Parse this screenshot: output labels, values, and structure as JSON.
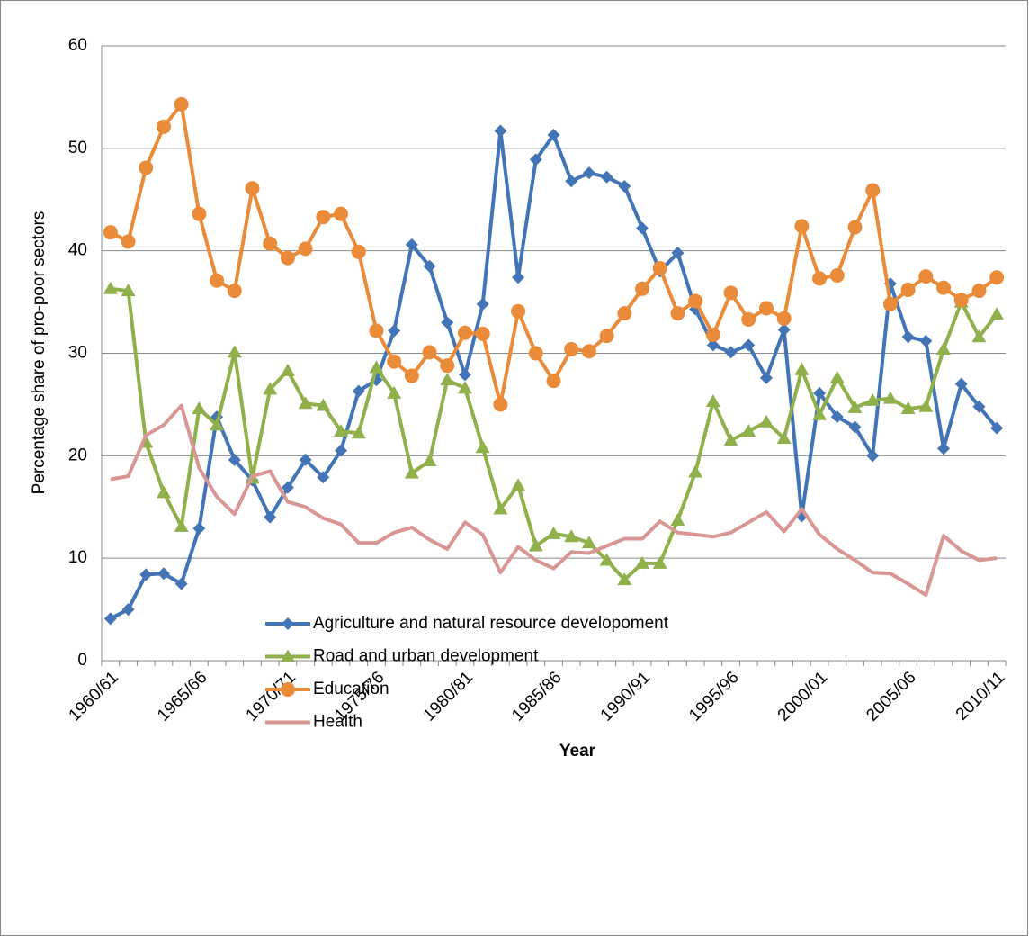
{
  "chart_data": {
    "type": "line",
    "x_label": "Year",
    "y_label": "Percentage share of pro-poor sectors",
    "categories": [
      "1960/61",
      null,
      null,
      null,
      null,
      "1965/66",
      null,
      null,
      null,
      null,
      "1970/71",
      null,
      null,
      null,
      null,
      "1975/76",
      null,
      null,
      null,
      null,
      "1980/81",
      null,
      null,
      null,
      null,
      "1985/86",
      null,
      null,
      null,
      null,
      "1990/91",
      null,
      null,
      null,
      null,
      "1995/96",
      null,
      null,
      null,
      null,
      "2000/01",
      null,
      null,
      null,
      null,
      "2005/06",
      null,
      null,
      null,
      null,
      "2010/11"
    ],
    "ylim": [
      0,
      60
    ],
    "yticks": [
      0,
      10,
      20,
      30,
      40,
      50,
      60
    ],
    "grid": true,
    "legend": "bottom",
    "series": [
      {
        "name": "Agriculture and natural resource developoment",
        "color": "#4274b6",
        "marker": "diamond",
        "values": [
          4.1,
          5.0,
          8.4,
          8.5,
          7.5,
          12.9,
          23.8,
          19.6,
          17.6,
          14.0,
          16.9,
          19.6,
          17.9,
          20.5,
          26.3,
          27.4,
          32.2,
          40.6,
          38.5,
          33.0,
          27.9,
          34.8,
          51.7,
          37.4,
          48.9,
          51.3,
          46.8,
          47.6,
          47.2,
          46.3,
          42.2,
          38.0,
          39.8,
          34.3,
          30.8,
          30.1,
          30.8,
          27.6,
          32.3,
          14.1,
          26.1,
          23.8,
          22.8,
          20.0,
          36.8,
          31.6,
          31.2,
          20.7,
          27.0,
          24.8,
          22.7
        ]
      },
      {
        "name": "Road and urban development",
        "color": "#8fb04a",
        "marker": "triangle",
        "values": [
          36.3,
          36.1,
          21.3,
          16.4,
          13.1,
          24.6,
          23.0,
          30.1,
          17.8,
          26.5,
          28.3,
          25.1,
          24.9,
          22.4,
          22.2,
          28.6,
          26.1,
          18.3,
          19.5,
          27.4,
          26.6,
          20.8,
          14.8,
          17.1,
          11.2,
          12.4,
          12.1,
          11.5,
          9.8,
          7.9,
          9.5,
          9.5,
          13.7,
          18.4,
          25.3,
          21.5,
          22.4,
          23.3,
          21.7,
          28.4,
          24.0,
          27.6,
          24.7,
          25.4,
          25.6,
          24.6,
          24.8,
          30.4,
          35.0,
          31.6,
          33.8
        ]
      },
      {
        "name": "Education",
        "color": "#ea8b3a",
        "marker": "circle",
        "values": [
          41.8,
          40.9,
          48.1,
          52.1,
          54.3,
          43.6,
          37.1,
          36.1,
          46.1,
          40.7,
          39.3,
          40.2,
          43.3,
          43.6,
          39.9,
          32.2,
          29.2,
          27.8,
          30.1,
          28.8,
          32.0,
          31.9,
          25.0,
          34.1,
          30.0,
          27.3,
          30.4,
          30.2,
          31.7,
          33.9,
          36.3,
          38.3,
          33.9,
          35.1,
          31.8,
          35.9,
          33.3,
          34.4,
          33.4,
          42.4,
          37.3,
          37.6,
          42.3,
          45.9,
          34.8,
          36.2,
          37.5,
          36.4,
          35.2,
          36.1,
          37.4
        ]
      },
      {
        "name": "Health",
        "color": "#d99694",
        "marker": "none",
        "values": [
          17.7,
          18.0,
          22.0,
          23.0,
          24.9,
          18.8,
          16.0,
          14.3,
          18.0,
          18.5,
          15.5,
          15.0,
          13.9,
          13.3,
          11.5,
          11.5,
          12.5,
          13.0,
          11.8,
          10.9,
          13.5,
          12.3,
          8.6,
          11.1,
          9.8,
          9.0,
          10.6,
          10.5,
          11.2,
          11.9,
          11.9,
          13.6,
          12.5,
          12.3,
          12.1,
          12.5,
          13.5,
          14.5,
          12.6,
          14.8,
          12.3,
          10.9,
          9.8,
          8.6,
          8.5,
          7.5,
          6.4,
          12.2,
          10.7,
          9.8,
          10.0
        ]
      }
    ]
  }
}
